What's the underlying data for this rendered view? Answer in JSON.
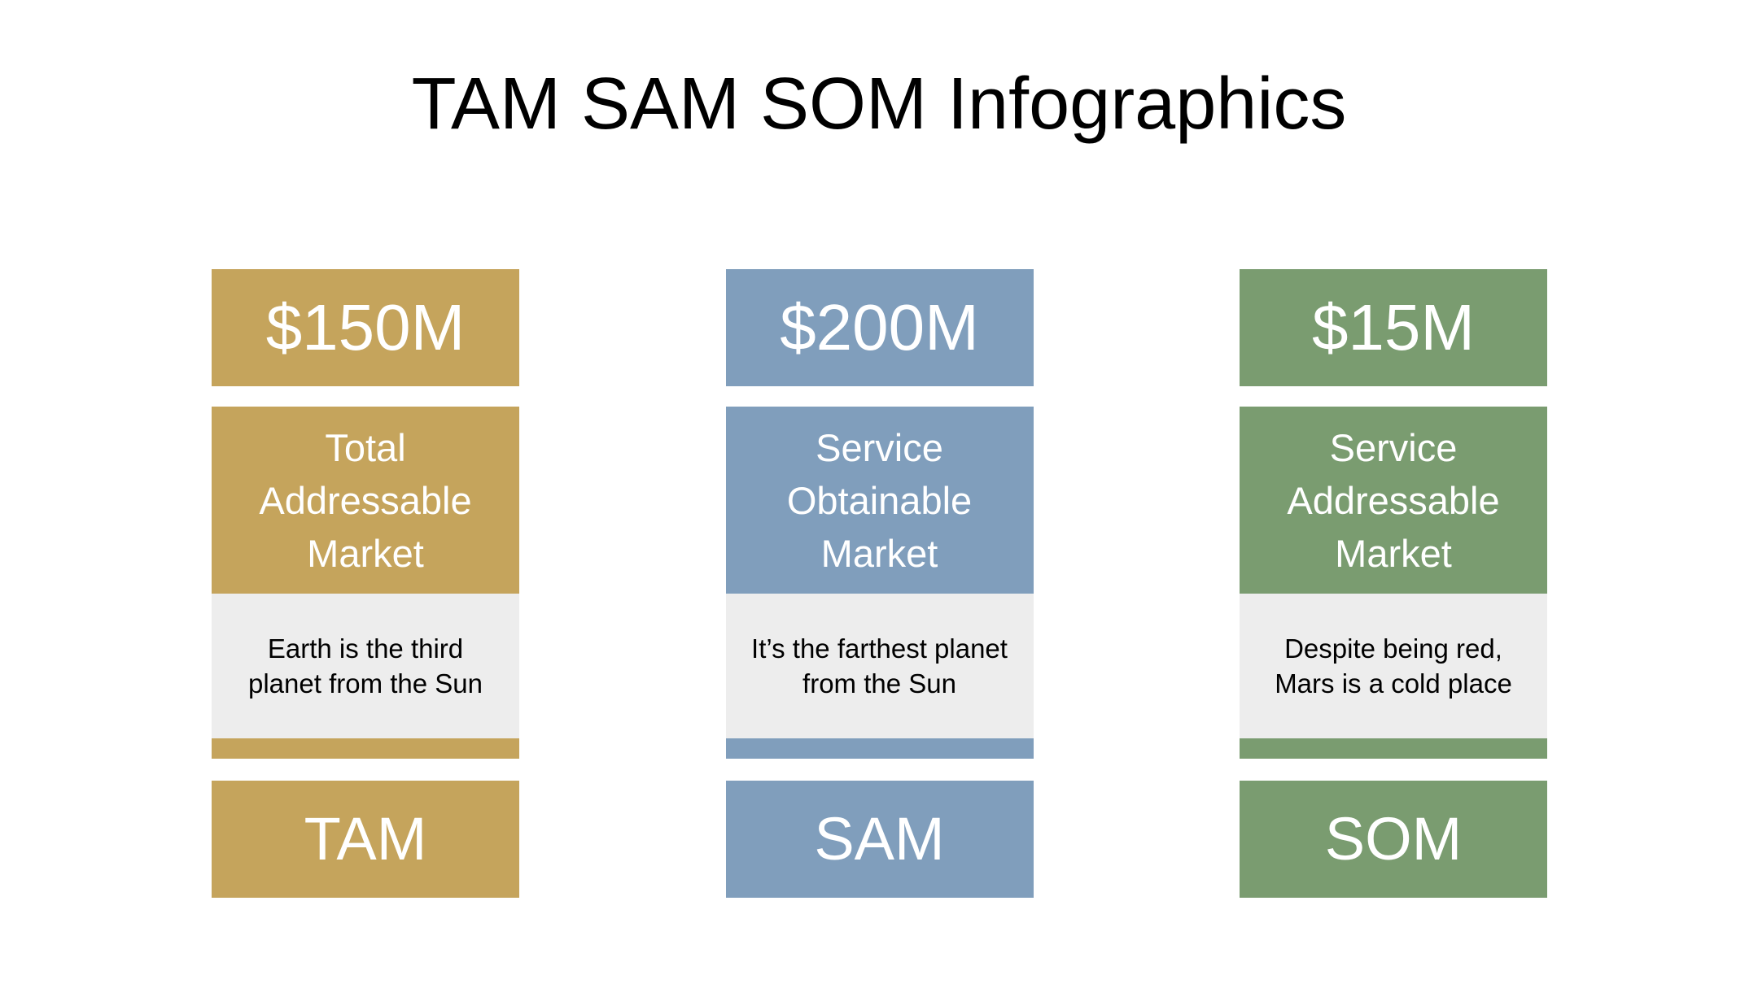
{
  "title": "TAM SAM SOM Infographics",
  "theme": {
    "background": "#FFFFFF",
    "title_color": "#000000",
    "description_bg": "#EDEDED",
    "text_on_color": "#FFFFFF",
    "description_text_color": "#000000"
  },
  "columns": [
    {
      "id": "tam",
      "value": "$150M",
      "name": "Total Addressable Market",
      "description": "Earth is the third planet from the Sun",
      "label": "TAM",
      "color": "#C5A45C"
    },
    {
      "id": "sam",
      "value": "$200M",
      "name": "Service Obtainable Market",
      "description": "It’s the farthest planet from the Sun",
      "label": "SAM",
      "color": "#809EBC"
    },
    {
      "id": "som",
      "value": "$15M",
      "name": "Service Addressable Market",
      "description": "Despite being red, Mars is a cold place",
      "label": "SOM",
      "color": "#7A9C70"
    }
  ]
}
